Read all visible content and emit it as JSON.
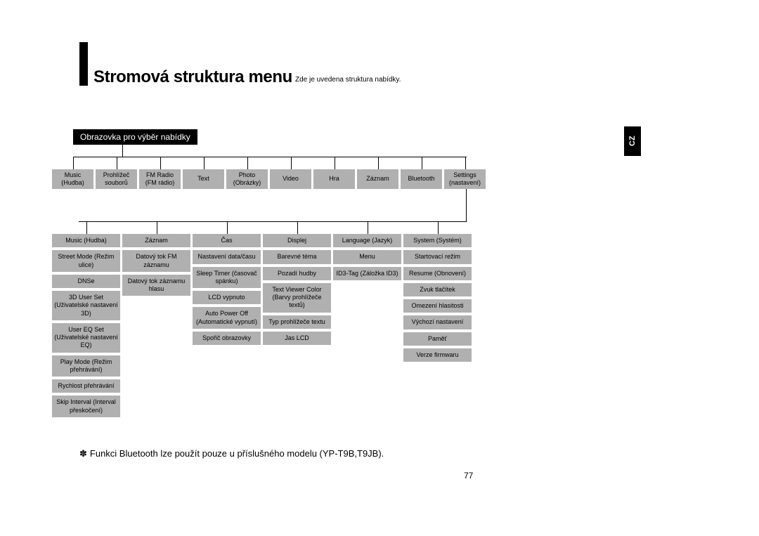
{
  "heading": {
    "title": "Stromová struktura menu",
    "subtitle": "Zde je uvedena struktura nabídky.",
    "pill": "Obrazovka pro výběr nabídky",
    "lang_tab": "CZ",
    "title_fontsize": 24,
    "subtitle_fontsize": 10
  },
  "colors": {
    "node_bg": "#b0b0b0",
    "node_text": "#000000",
    "line": "#000000",
    "page_bg": "#ffffff",
    "pill_bg": "#000000",
    "pill_text": "#ffffff"
  },
  "top_row": [
    {
      "l1": "Music",
      "l2": "(Hudba)"
    },
    {
      "l1": "Prohlížeč",
      "l2": "souborů"
    },
    {
      "l1": "FM Radio",
      "l2": "(FM rádio)"
    },
    {
      "l1": "Text",
      "l2": ""
    },
    {
      "l1": "Photo",
      "l2": "(Obrázky)"
    },
    {
      "l1": "Video",
      "l2": ""
    },
    {
      "l1": "Hra",
      "l2": ""
    },
    {
      "l1": "Záznam",
      "l2": ""
    },
    {
      "l1": "Bluetooth",
      "l2": ""
    },
    {
      "l1": "Settings",
      "l2": "(nastavení)"
    }
  ],
  "columns": [
    {
      "items": [
        "Music (Hudba)",
        "Street Mode (Režim ulice)",
        "DNSe",
        "3D User Set (Uživatelské nastavení 3D)",
        "User EQ Set (Uživatelské nastavení EQ)",
        "Play Mode (Režim přehrávání)",
        "Rychlost přehrávání",
        "Skip Interval (Interval přeskočení)"
      ]
    },
    {
      "items": [
        "Záznam",
        "Datový tok FM záznamu",
        "Datový tok záznamu hlasu"
      ]
    },
    {
      "items": [
        "Čas",
        "Nastavení data/času",
        "Sleep Timer (časovač spánku)",
        "LCD vypnuto",
        "Auto Power Off (Automatické vypnutí)",
        "Spořič obrazovky"
      ]
    },
    {
      "items": [
        "Displej",
        "Barevné téma",
        "Pozadí hudby",
        "Text Viewer Color (Barvy prohlížeče textů)",
        "Typ prohlížeče textu",
        "Jas LCD"
      ]
    },
    {
      "items": [
        "Language (Jazyk)",
        "Menu",
        "ID3-Tag (Záložka ID3)"
      ]
    },
    {
      "items": [
        "System (Systém)",
        "Startovací režim",
        "Resume (Obnovení)",
        "Zvuk tlačítek",
        "Omezení hlasitosti",
        "Výchozí nastavení",
        "Paměť",
        "Verze firmwaru"
      ]
    }
  ],
  "footnote": "Funkci Bluetooth lze použít pouze u příslušného modelu (YP-T9B,T9JB).",
  "page_number": "77"
}
